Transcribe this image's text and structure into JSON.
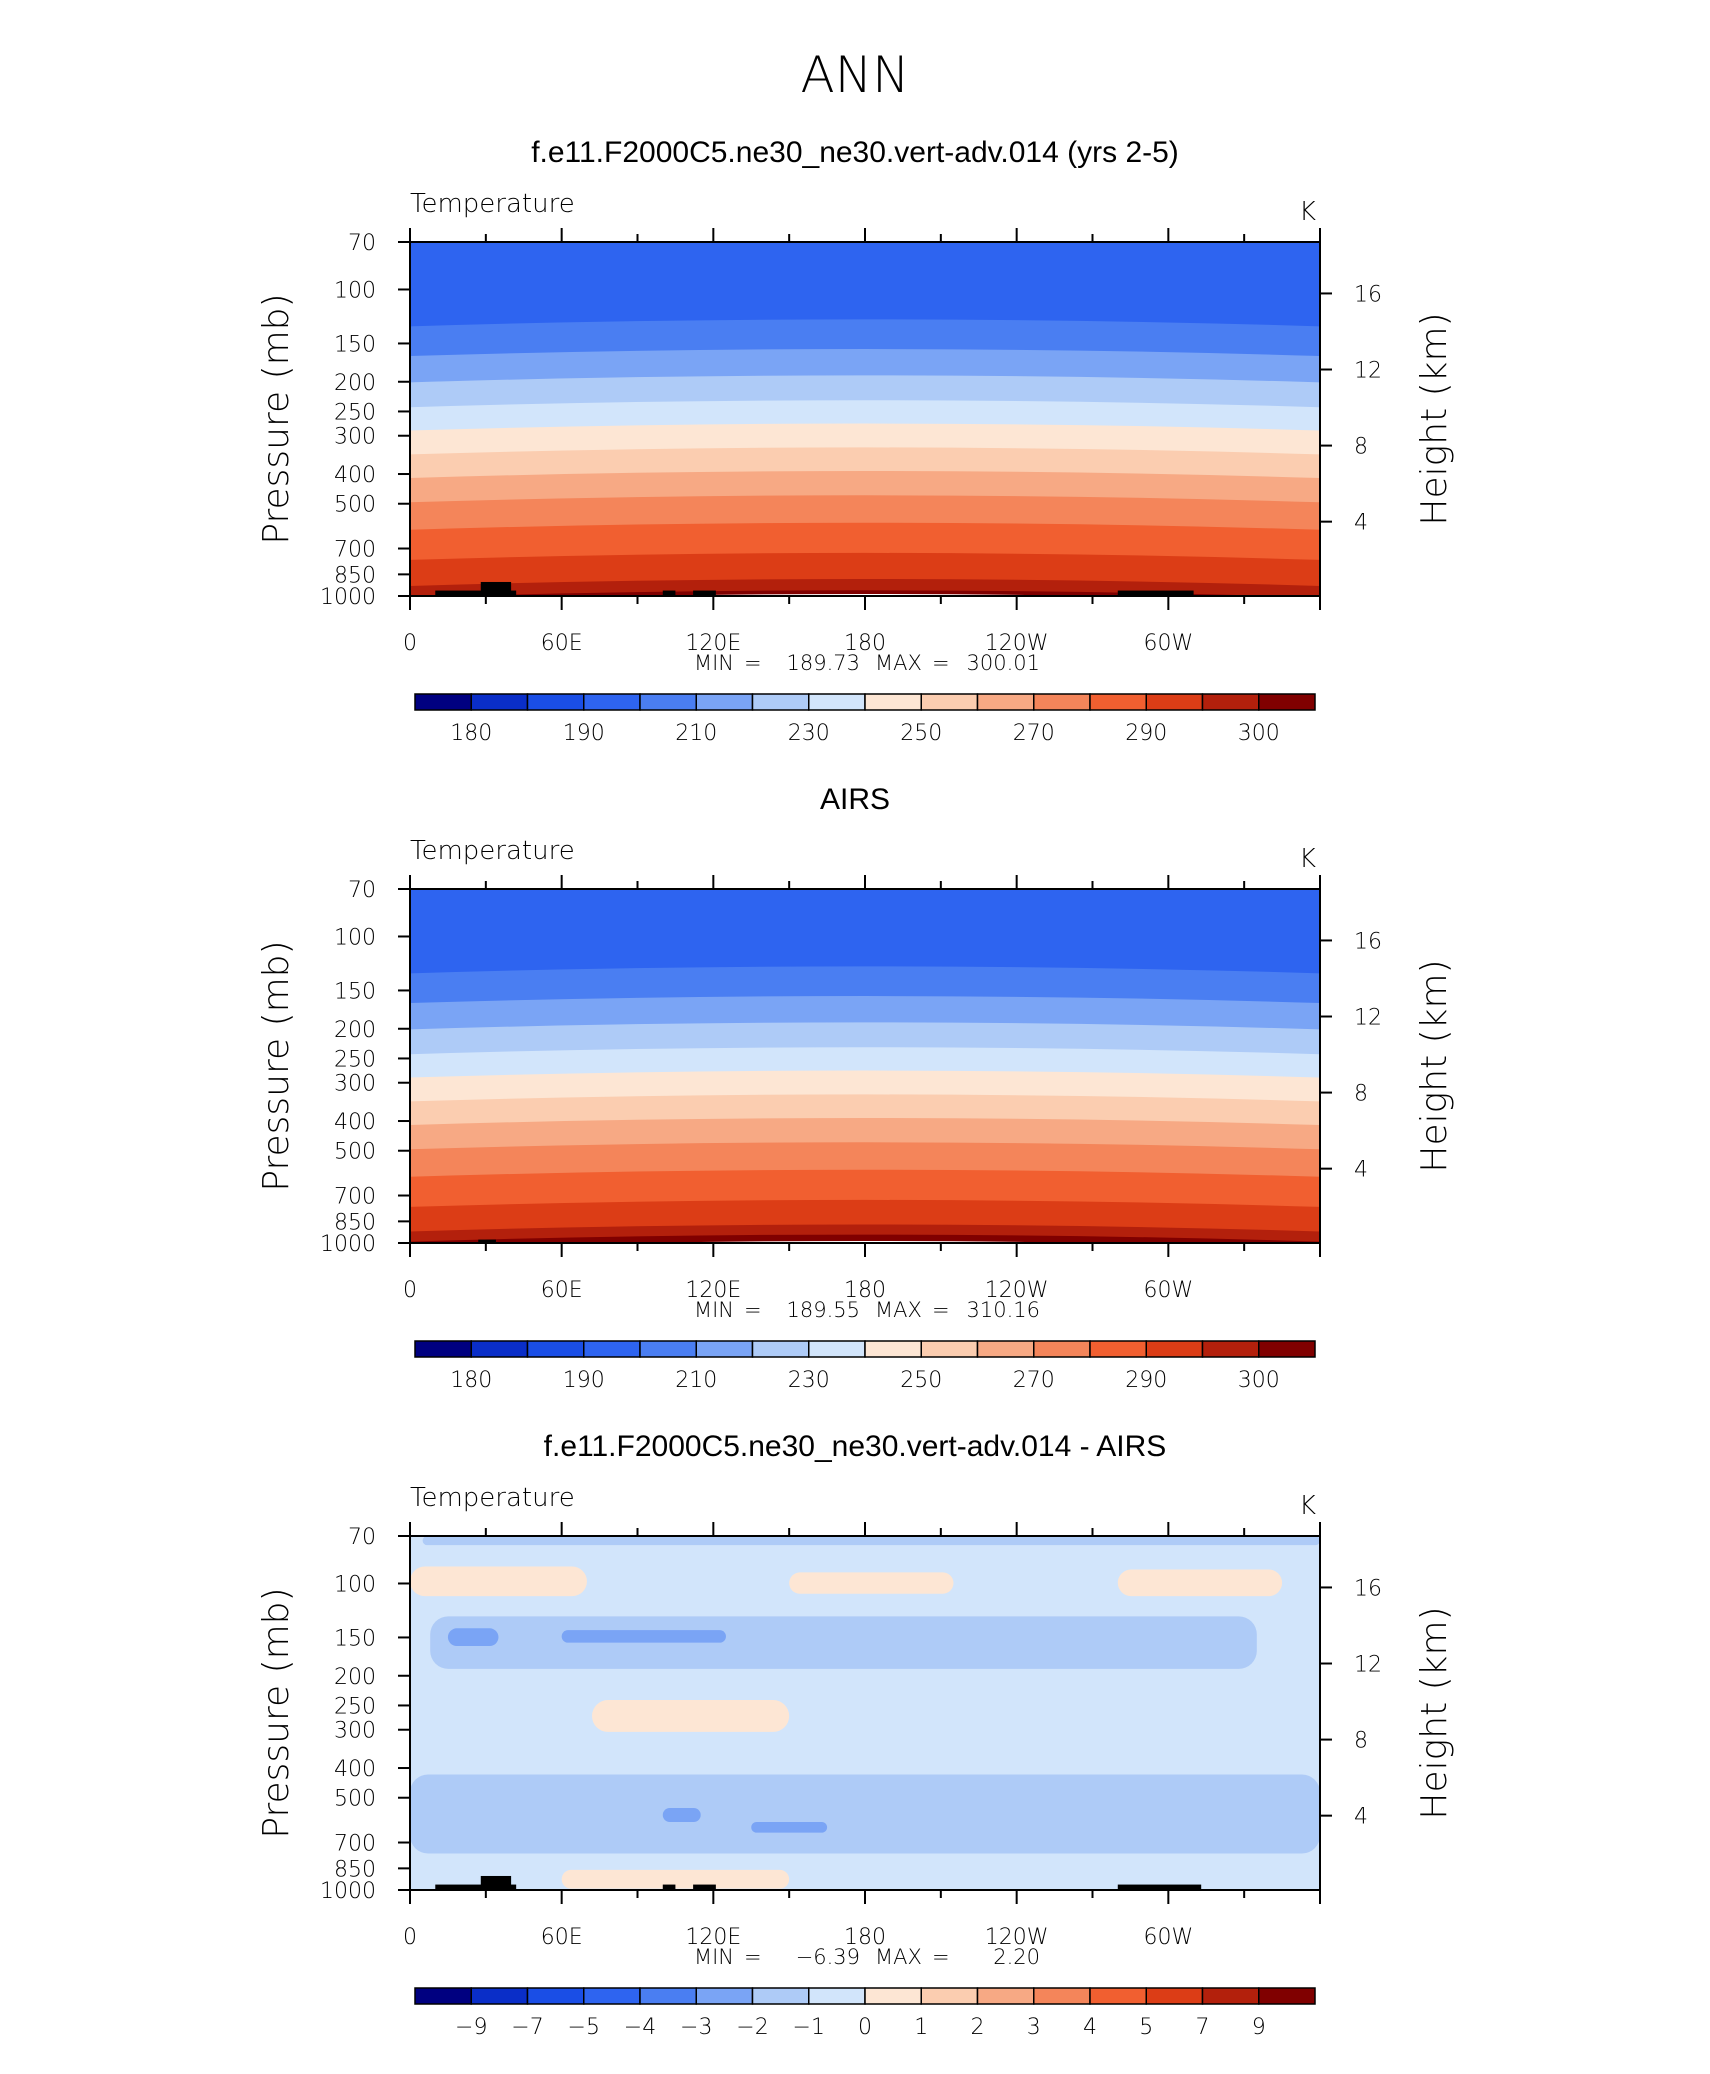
{
  "page_title": "ANN",
  "colorbar_colors": [
    "#000080",
    "#0a2ec8",
    "#1a4ee6",
    "#2e64f0",
    "#4a7ef2",
    "#7aa4f5",
    "#aecbf7",
    "#d2e5fb",
    "#fde6d4",
    "#fbcdb0",
    "#f7a984",
    "#f4855a",
    "#f15f30",
    "#dc3d16",
    "#b3200c",
    "#800000"
  ],
  "chart_data": [
    {
      "type": "heatmap",
      "title": "f.e11.F2000C5.ne30_ne30.vert-adv.014 (yrs 2-5)",
      "variable": "Temperature",
      "units": "K",
      "ylabel": "Pressure (mb)",
      "ylabel_right": "Height (km)",
      "x_ticks": [
        "0",
        "60E",
        "120E",
        "180",
        "120W",
        "60W"
      ],
      "y_ticks": [
        "70",
        "100",
        "150",
        "200",
        "250",
        "300",
        "400",
        "500",
        "700",
        "850",
        "1000"
      ],
      "y2_ticks": [
        "16",
        "12",
        "8",
        "4"
      ],
      "stats": {
        "min_label": "MIN",
        "min": "189.73",
        "max_label": "MAX",
        "max": "300.01"
      },
      "levels": [
        175,
        180,
        185,
        190,
        200,
        210,
        220,
        230,
        240,
        250,
        260,
        270,
        280,
        290,
        295,
        300
      ],
      "colorbar_labels": [
        "180",
        "190",
        "210",
        "230",
        "250",
        "270",
        "290",
        "300"
      ],
      "bands": [
        {
          "top": 70,
          "bottom": 128,
          "level": 3
        },
        {
          "top": 128,
          "bottom": 160,
          "level": 4
        },
        {
          "top": 160,
          "bottom": 195,
          "level": 5
        },
        {
          "top": 195,
          "bottom": 235,
          "level": 6
        },
        {
          "top": 235,
          "bottom": 280,
          "level": 7
        },
        {
          "top": 280,
          "bottom": 335,
          "level": 8
        },
        {
          "top": 335,
          "bottom": 400,
          "level": 9
        },
        {
          "top": 400,
          "bottom": 480,
          "level": 10
        },
        {
          "top": 480,
          "bottom": 590,
          "level": 11
        },
        {
          "top": 590,
          "bottom": 740,
          "level": 12
        },
        {
          "top": 740,
          "bottom": 900,
          "level": 13
        },
        {
          "top": 900,
          "bottom": 980,
          "level": 14
        },
        {
          "top": 980,
          "bottom": 1000,
          "level": 15
        }
      ],
      "land_mask": [
        {
          "lon0": 10,
          "lon1": 42,
          "p_top": 960
        },
        {
          "lon0": 28,
          "lon1": 40,
          "p_top": 900
        },
        {
          "lon0": 100,
          "lon1": 105,
          "p_top": 960
        },
        {
          "lon0": 112,
          "lon1": 121,
          "p_top": 960
        },
        {
          "lon0": 280,
          "lon1": 310,
          "p_top": 960
        }
      ]
    },
    {
      "type": "heatmap",
      "title": "AIRS",
      "variable": "Temperature",
      "units": "K",
      "ylabel": "Pressure (mb)",
      "ylabel_right": "Height (km)",
      "x_ticks": [
        "0",
        "60E",
        "120E",
        "180",
        "120W",
        "60W"
      ],
      "y_ticks": [
        "70",
        "100",
        "150",
        "200",
        "250",
        "300",
        "400",
        "500",
        "700",
        "850",
        "1000"
      ],
      "y2_ticks": [
        "16",
        "12",
        "8",
        "4"
      ],
      "stats": {
        "min_label": "MIN",
        "min": "189.55",
        "max_label": "MAX",
        "max": "310.16"
      },
      "levels": [
        175,
        180,
        185,
        190,
        200,
        210,
        220,
        230,
        240,
        250,
        260,
        270,
        280,
        290,
        295,
        300
      ],
      "colorbar_labels": [
        "180",
        "190",
        "210",
        "230",
        "250",
        "270",
        "290",
        "300"
      ],
      "bands": [
        {
          "top": 70,
          "bottom": 128,
          "level": 3
        },
        {
          "top": 128,
          "bottom": 160,
          "level": 4
        },
        {
          "top": 160,
          "bottom": 195,
          "level": 5
        },
        {
          "top": 195,
          "bottom": 235,
          "level": 6
        },
        {
          "top": 235,
          "bottom": 280,
          "level": 7
        },
        {
          "top": 280,
          "bottom": 335,
          "level": 8
        },
        {
          "top": 335,
          "bottom": 400,
          "level": 9
        },
        {
          "top": 400,
          "bottom": 480,
          "level": 10
        },
        {
          "top": 480,
          "bottom": 590,
          "level": 11
        },
        {
          "top": 590,
          "bottom": 740,
          "level": 12
        },
        {
          "top": 740,
          "bottom": 890,
          "level": 13
        },
        {
          "top": 890,
          "bottom": 960,
          "level": 14
        },
        {
          "top": 960,
          "bottom": 1000,
          "level": 15
        }
      ],
      "land_mask": [
        {
          "lon0": 27,
          "lon1": 34,
          "p_top": 975
        }
      ]
    },
    {
      "type": "heatmap",
      "title": "f.e11.F2000C5.ne30_ne30.vert-adv.014 - AIRS",
      "variable": "Temperature",
      "units": "K",
      "ylabel": "Pressure (mb)",
      "ylabel_right": "Height (km)",
      "x_ticks": [
        "0",
        "60E",
        "120E",
        "180",
        "120W",
        "60W"
      ],
      "y_ticks": [
        "70",
        "100",
        "150",
        "200",
        "250",
        "300",
        "400",
        "500",
        "700",
        "850",
        "1000"
      ],
      "y2_ticks": [
        "16",
        "12",
        "8",
        "4"
      ],
      "stats": {
        "min_label": "MIN",
        "min": "−6.39",
        "max_label": "MAX",
        "max": "2.20"
      },
      "levels": [
        -10,
        -9,
        -7,
        -5,
        -4,
        -3,
        -2,
        -1,
        0,
        1,
        2,
        3,
        4,
        5,
        7,
        9
      ],
      "colorbar_labels": [
        "−9",
        "−7",
        "−5",
        "−4",
        "−3",
        "−2",
        "−1",
        "0",
        "1",
        "2",
        "3",
        "4",
        "5",
        "7",
        "9"
      ],
      "background_level": 7,
      "regions": [
        {
          "level": 6,
          "lon0": 5,
          "lon1": 360,
          "p_top": 70,
          "p_bottom": 75
        },
        {
          "level": 8,
          "lon0": 0,
          "lon1": 70,
          "p_top": 88,
          "p_bottom": 110
        },
        {
          "level": 8,
          "lon0": 150,
          "lon1": 215,
          "p_top": 92,
          "p_bottom": 108
        },
        {
          "level": 8,
          "lon0": 280,
          "lon1": 345,
          "p_top": 90,
          "p_bottom": 110
        },
        {
          "level": 6,
          "lon0": 8,
          "lon1": 335,
          "p_top": 128,
          "p_bottom": 190
        },
        {
          "level": 5,
          "lon0": 15,
          "lon1": 35,
          "p_top": 140,
          "p_bottom": 160
        },
        {
          "level": 5,
          "lon0": 60,
          "lon1": 125,
          "p_top": 142,
          "p_bottom": 156
        },
        {
          "level": 8,
          "lon0": 72,
          "lon1": 150,
          "p_top": 240,
          "p_bottom": 305
        },
        {
          "level": 6,
          "lon0": 0,
          "lon1": 360,
          "p_top": 420,
          "p_bottom": 760
        },
        {
          "level": 5,
          "lon0": 100,
          "lon1": 115,
          "p_top": 540,
          "p_bottom": 600
        },
        {
          "level": 5,
          "lon0": 135,
          "lon1": 165,
          "p_top": 600,
          "p_bottom": 650
        },
        {
          "level": 8,
          "lon0": 60,
          "lon1": 150,
          "p_top": 860,
          "p_bottom": 990
        }
      ],
      "land_mask": [
        {
          "lon0": 10,
          "lon1": 42,
          "p_top": 960
        },
        {
          "lon0": 28,
          "lon1": 40,
          "p_top": 900
        },
        {
          "lon0": 100,
          "lon1": 105,
          "p_top": 960
        },
        {
          "lon0": 112,
          "lon1": 121,
          "p_top": 960
        },
        {
          "lon0": 280,
          "lon1": 313,
          "p_top": 960
        }
      ]
    }
  ]
}
